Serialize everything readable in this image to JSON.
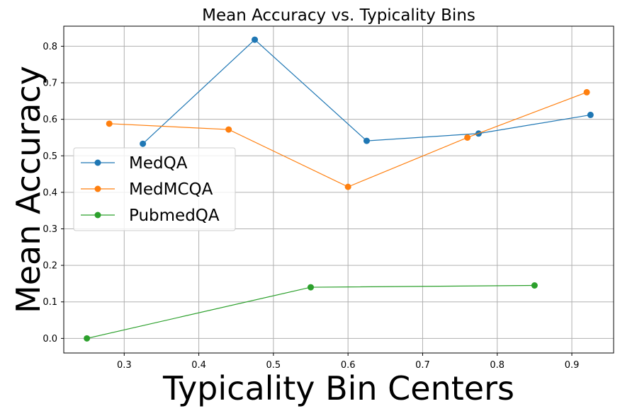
{
  "chart_data": {
    "type": "line",
    "title": "Mean Accuracy vs. Typicality Bins",
    "xlabel": "Typicality Bin Centers",
    "ylabel": "Mean Accuracy",
    "xlim": [
      0.219,
      0.956
    ],
    "ylim": [
      -0.04,
      0.855
    ],
    "xticks": [
      0.3,
      0.4,
      0.5,
      0.6,
      0.7,
      0.8,
      0.9
    ],
    "xtick_labels": [
      "0.3",
      "0.4",
      "0.5",
      "0.6",
      "0.7",
      "0.8",
      "0.9"
    ],
    "yticks": [
      0.0,
      0.1,
      0.2,
      0.3,
      0.4,
      0.5,
      0.6,
      0.7,
      0.8
    ],
    "ytick_labels": [
      "0.0",
      "0.1",
      "0.2",
      "0.3",
      "0.4",
      "0.5",
      "0.6",
      "0.7",
      "0.8"
    ],
    "grid": true,
    "legend_position": "center-left",
    "series": [
      {
        "name": "MedQA",
        "color": "#1f77b4",
        "x": [
          0.325,
          0.475,
          0.625,
          0.775,
          0.925
        ],
        "y": [
          0.533,
          0.818,
          0.541,
          0.561,
          0.612
        ]
      },
      {
        "name": "MedMCQA",
        "color": "#ff7f0e",
        "x": [
          0.28,
          0.44,
          0.6,
          0.76,
          0.92
        ],
        "y": [
          0.588,
          0.572,
          0.415,
          0.55,
          0.674
        ]
      },
      {
        "name": "PubmedQA",
        "color": "#2ca02c",
        "x": [
          0.25,
          0.55,
          0.85
        ],
        "y": [
          0.0,
          0.14,
          0.145
        ]
      }
    ]
  }
}
